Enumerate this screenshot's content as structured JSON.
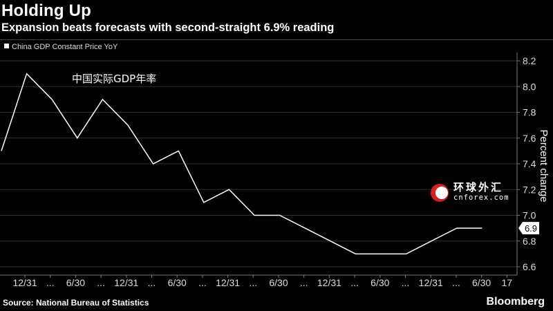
{
  "header": {
    "title": "Holding Up",
    "subtitle": "Expansion beats forecasts with second-straight 6.9% reading"
  },
  "footer": {
    "source": "Source: National Bureau of Statistics",
    "brand": "Bloomberg"
  },
  "overlays": {
    "cn_label": "中国实际GDP年率",
    "watermark_cn": "环球外汇",
    "watermark_url": "cnforex.com"
  },
  "colors": {
    "background": "#000000",
    "line": "#ffffff",
    "grid": "#333333",
    "watermark_red": "#d62020"
  },
  "chart_data": {
    "type": "line",
    "title": "Holding Up",
    "subtitle": "Expansion beats forecasts with second-straight 6.9% reading",
    "ylabel": "Percent change",
    "xlabel": "",
    "ylim": [
      6.6,
      8.2
    ],
    "yticks": [
      "8.2",
      "8.0",
      "7.8",
      "7.6",
      "7.4",
      "7.2",
      "7.0",
      "6.8",
      "6.6"
    ],
    "x_tick_labels": [
      "12/31",
      "...",
      "6/30",
      "...",
      "12/31",
      "...",
      "6/30",
      "...",
      "12/31",
      "...",
      "6/30",
      "...",
      "12/31",
      "...",
      "6/30",
      "...",
      "12/31",
      "...",
      "6/30",
      "17"
    ],
    "x_quarters": [
      "2012-09-30",
      "2012-12-31",
      "2013-03-31",
      "2013-06-30",
      "2013-09-30",
      "2013-12-31",
      "2014-03-31",
      "2014-06-30",
      "2014-09-30",
      "2014-12-31",
      "2015-03-31",
      "2015-06-30",
      "2015-09-30",
      "2015-12-31",
      "2016-03-31",
      "2016-06-30",
      "2016-09-30",
      "2016-12-31",
      "2017-03-31",
      "2017-06-30"
    ],
    "grid": true,
    "legend": "top-left",
    "series": [
      {
        "name": "China GDP Constant Price YoY",
        "values": [
          7.5,
          8.1,
          7.9,
          7.6,
          7.9,
          7.7,
          7.4,
          7.5,
          7.1,
          7.2,
          7.0,
          7.0,
          6.9,
          6.8,
          6.7,
          6.7,
          6.7,
          6.8,
          6.9,
          6.9
        ]
      }
    ],
    "last_value_label": "6.9"
  }
}
